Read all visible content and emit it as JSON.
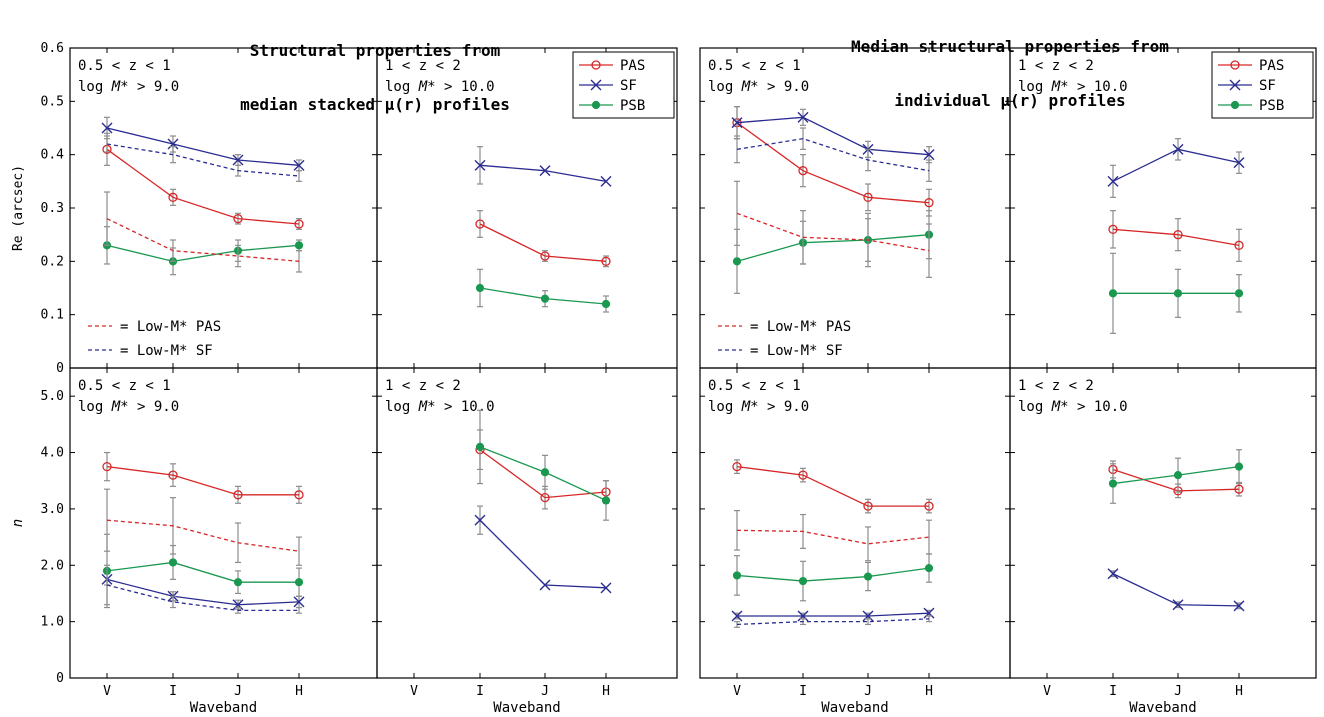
{
  "titles": {
    "left_line1": "Structural properties from",
    "left_line2": "median stacked μ(r) profiles",
    "right_line1": "Median structural properties from",
    "right_line2": "individual μ(r) profiles"
  },
  "axis": {
    "xlabel": "Waveband",
    "ylabel_top": "Re (arcsec)",
    "ylabel_bottom": "n",
    "wavebands": [
      "V",
      "I",
      "J",
      "H"
    ],
    "top_ticks": [
      "0",
      "0.1",
      "0.2",
      "0.3",
      "0.4",
      "0.5",
      "0.6"
    ],
    "bottom_ticks": [
      "0",
      "1.0",
      "2.0",
      "3.0",
      "4.0",
      "5.0"
    ]
  },
  "annotations": {
    "z_low": "0.5 < z < 1",
    "z_high": "1 < z < 2",
    "mass_low_prefix": "log ",
    "mass_sym": "M*",
    "mass_low_suffix": " > 9.0",
    "mass_high_suffix": " > 10.0",
    "lowmass_pas": "= Low-M* PAS",
    "lowmass_sf": "= Low-M* SF"
  },
  "legend": [
    {
      "name": "PAS",
      "color": "#d62728",
      "marker": "open-circle"
    },
    {
      "name": "SF",
      "color": "#2b2c92",
      "marker": "x"
    },
    {
      "name": "PSB",
      "color": "#1a9850",
      "marker": "filled-circle"
    }
  ],
  "colors": {
    "PAS": "#d62728",
    "SF": "#2b2c92",
    "PSB": "#1a9850",
    "error": "#8c8c8c"
  },
  "chart_data": [
    {
      "type": "line",
      "panel": "stacked-Re-lowz",
      "title": "Structural properties from median stacked μ(r) profiles",
      "xlabel": "Waveband",
      "ylabel": "Re (arcsec)",
      "ylim": [
        0,
        0.6
      ],
      "categories": [
        "V",
        "I",
        "J",
        "H"
      ],
      "series": [
        {
          "name": "PAS",
          "values": [
            0.41,
            0.32,
            0.28,
            0.27
          ],
          "err": [
            0.03,
            0.015,
            0.01,
            0.01
          ]
        },
        {
          "name": "SF",
          "values": [
            0.45,
            0.42,
            0.39,
            0.38
          ],
          "err": [
            0.02,
            0.015,
            0.01,
            0.01
          ]
        },
        {
          "name": "PSB",
          "values": [
            0.23,
            0.2,
            0.22,
            0.23
          ],
          "err": [
            0.035,
            0.025,
            0.02,
            0.01
          ]
        },
        {
          "name": "Low-M* PAS",
          "style": "dashed",
          "values": [
            0.28,
            0.22,
            0.21,
            0.2
          ],
          "err": [
            0.05,
            0.02,
            0.02,
            0.02
          ]
        },
        {
          "name": "Low-M* SF",
          "style": "dashed",
          "values": [
            0.42,
            0.4,
            0.37,
            0.36
          ],
          "err": [
            0.015,
            0.015,
            0.01,
            0.01
          ]
        }
      ]
    },
    {
      "type": "line",
      "panel": "stacked-Re-highz",
      "xlabel": "Waveband",
      "ylim": [
        0,
        0.6
      ],
      "categories": [
        "V",
        "I",
        "J",
        "H"
      ],
      "series": [
        {
          "name": "PAS",
          "values": [
            null,
            0.27,
            0.21,
            0.2
          ],
          "err": [
            null,
            0.025,
            0.01,
            0.01
          ]
        },
        {
          "name": "SF",
          "values": [
            null,
            0.38,
            0.37,
            0.35
          ],
          "err": [
            null,
            0.035,
            0,
            0
          ]
        },
        {
          "name": "PSB",
          "values": [
            null,
            0.15,
            0.13,
            0.12
          ],
          "err": [
            null,
            0.035,
            0.015,
            0.015
          ]
        }
      ]
    },
    {
      "type": "line",
      "panel": "individual-Re-lowz",
      "title": "Median structural properties from individual μ(r) profiles",
      "xlabel": "Waveband",
      "ylim": [
        0,
        0.6
      ],
      "categories": [
        "V",
        "I",
        "J",
        "H"
      ],
      "series": [
        {
          "name": "PAS",
          "values": [
            0.46,
            0.37,
            0.32,
            0.31
          ],
          "err": [
            0.03,
            0.03,
            0.025,
            0.025
          ]
        },
        {
          "name": "SF",
          "values": [
            0.46,
            0.47,
            0.41,
            0.4
          ],
          "err": [
            0.03,
            0.015,
            0.015,
            0.015
          ]
        },
        {
          "name": "PSB",
          "values": [
            0.2,
            0.235,
            0.24,
            0.25
          ],
          "err": [
            0.06,
            0.04,
            0.04,
            0.045
          ]
        },
        {
          "name": "Low-M* PAS",
          "style": "dashed",
          "values": [
            0.29,
            0.245,
            0.24,
            0.22
          ],
          "err": [
            0.06,
            0.05,
            0.05,
            0.05
          ]
        },
        {
          "name": "Low-M* SF",
          "style": "dashed",
          "values": [
            0.41,
            0.43,
            0.39,
            0.37
          ],
          "err": [
            0.025,
            0.02,
            0.02,
            0.02
          ]
        }
      ]
    },
    {
      "type": "line",
      "panel": "individual-Re-highz",
      "xlabel": "Waveband",
      "ylim": [
        0,
        0.6
      ],
      "categories": [
        "V",
        "I",
        "J",
        "H"
      ],
      "series": [
        {
          "name": "PAS",
          "values": [
            null,
            0.26,
            0.25,
            0.23
          ],
          "err": [
            null,
            0.035,
            0.03,
            0.03
          ]
        },
        {
          "name": "SF",
          "values": [
            null,
            0.35,
            0.41,
            0.385
          ],
          "err": [
            null,
            0.03,
            0.02,
            0.02
          ]
        },
        {
          "name": "PSB",
          "values": [
            null,
            0.14,
            0.14,
            0.14
          ],
          "err": [
            null,
            0.075,
            0.045,
            0.035
          ]
        }
      ]
    },
    {
      "type": "line",
      "panel": "stacked-n-lowz",
      "xlabel": "Waveband",
      "ylabel": "n",
      "ylim": [
        0,
        5.5
      ],
      "categories": [
        "V",
        "I",
        "J",
        "H"
      ],
      "series": [
        {
          "name": "PAS",
          "values": [
            3.75,
            3.6,
            3.25,
            3.25
          ],
          "err": [
            0.25,
            0.2,
            0.15,
            0.15
          ]
        },
        {
          "name": "SF",
          "values": [
            1.75,
            1.45,
            1.3,
            1.35
          ],
          "err": [
            0.1,
            0.08,
            0.08,
            0.1
          ]
        },
        {
          "name": "PSB",
          "values": [
            1.9,
            2.05,
            1.7,
            1.7
          ],
          "err": [
            0.65,
            0.3,
            0.2,
            0.25
          ]
        },
        {
          "name": "Low-M* PAS",
          "style": "dashed",
          "values": [
            2.8,
            2.7,
            2.4,
            2.25
          ],
          "err": [
            0.55,
            0.5,
            0.35,
            0.25
          ]
        },
        {
          "name": "Low-M* SF",
          "style": "dashed",
          "values": [
            1.65,
            1.35,
            1.2,
            1.2
          ],
          "err": [
            0.35,
            0.1,
            0.05,
            0.05
          ]
        }
      ]
    },
    {
      "type": "line",
      "panel": "stacked-n-highz",
      "xlabel": "Waveband",
      "ylim": [
        0,
        5.5
      ],
      "categories": [
        "V",
        "I",
        "J",
        "H"
      ],
      "series": [
        {
          "name": "PAS",
          "values": [
            null,
            4.05,
            3.2,
            3.3
          ],
          "err": [
            null,
            0.35,
            0.2,
            0.2
          ]
        },
        {
          "name": "SF",
          "values": [
            null,
            2.8,
            1.65,
            1.6
          ],
          "err": [
            null,
            0.25,
            0,
            0
          ]
        },
        {
          "name": "PSB",
          "values": [
            null,
            4.1,
            3.65,
            3.15
          ],
          "err": [
            null,
            0.65,
            0.3,
            0.35
          ]
        }
      ]
    },
    {
      "type": "line",
      "panel": "individual-n-lowz",
      "xlabel": "Waveband",
      "ylim": [
        0,
        5.5
      ],
      "categories": [
        "V",
        "I",
        "J",
        "H"
      ],
      "series": [
        {
          "name": "PAS",
          "values": [
            3.75,
            3.6,
            3.05,
            3.05
          ],
          "err": [
            0.12,
            0.12,
            0.12,
            0.12
          ]
        },
        {
          "name": "SF",
          "values": [
            1.1,
            1.1,
            1.1,
            1.15
          ],
          "err": [
            0.05,
            0.05,
            0.05,
            0.05
          ]
        },
        {
          "name": "PSB",
          "values": [
            1.82,
            1.72,
            1.8,
            1.95
          ],
          "err": [
            0.35,
            0.35,
            0.25,
            0.25
          ]
        },
        {
          "name": "Low-M* PAS",
          "style": "dashed",
          "values": [
            2.62,
            2.6,
            2.38,
            2.5
          ],
          "err": [
            0.35,
            0.3,
            0.3,
            0.3
          ]
        },
        {
          "name": "Low-M* SF",
          "style": "dashed",
          "values": [
            0.95,
            1.0,
            1.0,
            1.05
          ],
          "err": [
            0.05,
            0.05,
            0.05,
            0.05
          ]
        }
      ]
    },
    {
      "type": "line",
      "panel": "individual-n-highz",
      "xlabel": "Waveband",
      "ylim": [
        0,
        5.5
      ],
      "categories": [
        "V",
        "I",
        "J",
        "H"
      ],
      "series": [
        {
          "name": "PAS",
          "values": [
            null,
            3.7,
            3.32,
            3.35
          ],
          "err": [
            null,
            0.15,
            0.12,
            0.12
          ]
        },
        {
          "name": "SF",
          "values": [
            null,
            1.85,
            1.3,
            1.28
          ],
          "err": [
            null,
            0.05,
            0.05,
            0.05
          ]
        },
        {
          "name": "PSB",
          "values": [
            null,
            3.45,
            3.6,
            3.75
          ],
          "err": [
            null,
            0.35,
            0.3,
            0.3
          ]
        }
      ]
    }
  ]
}
